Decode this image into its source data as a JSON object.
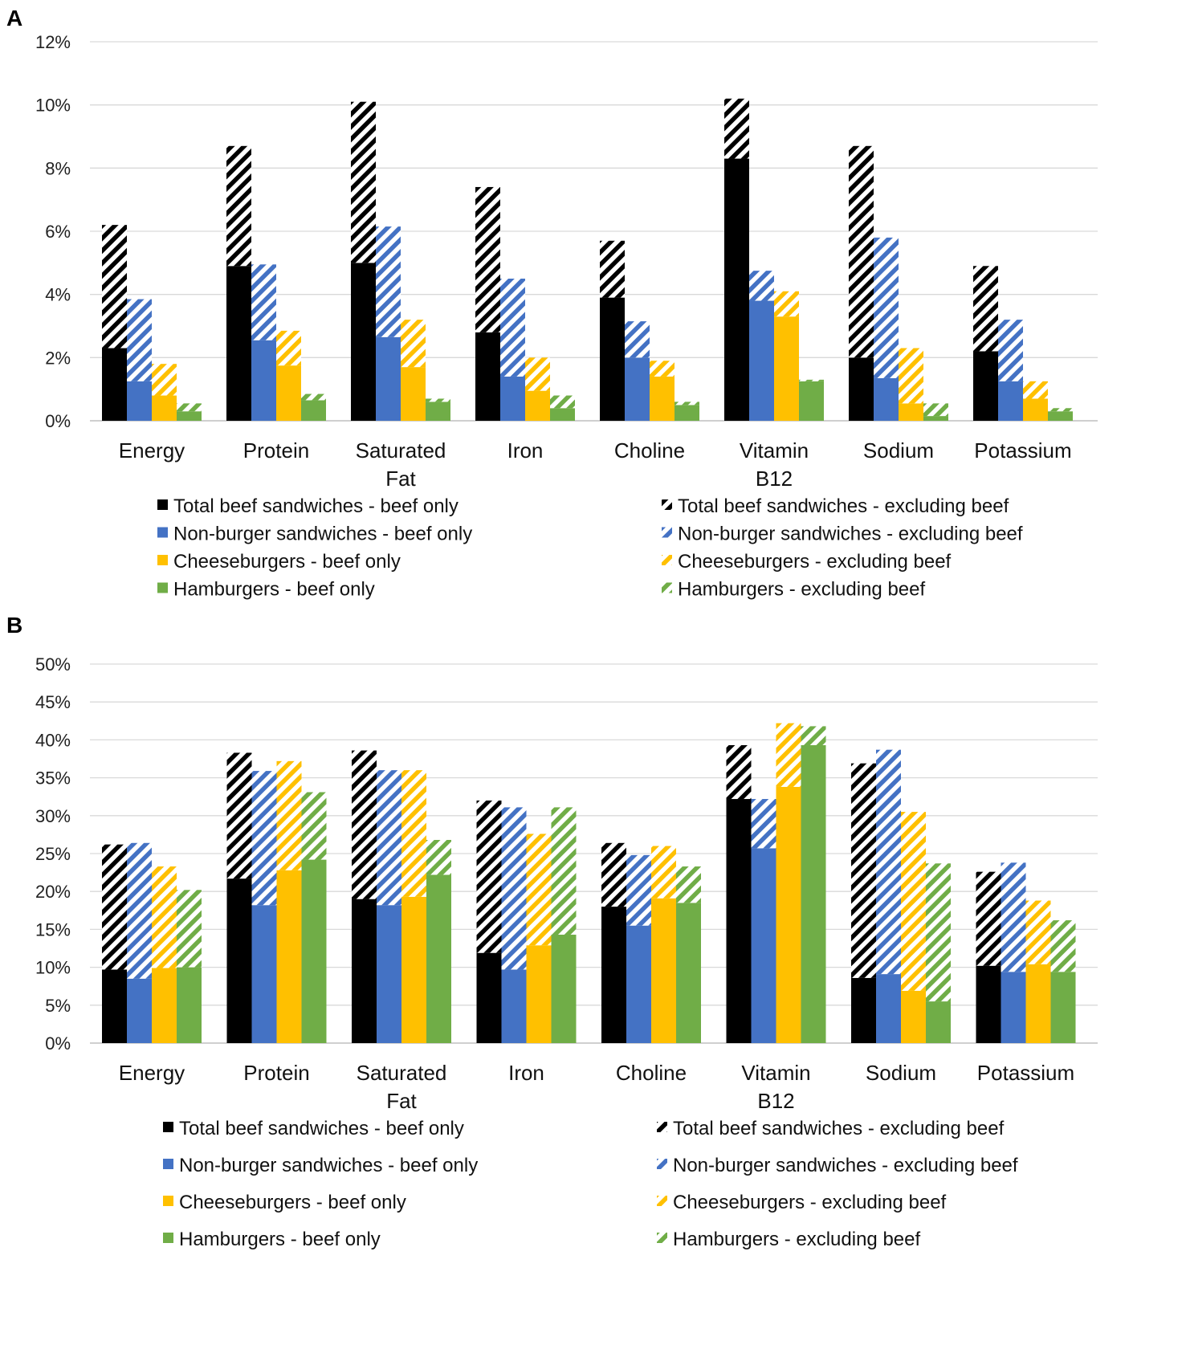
{
  "chart_data": [
    {
      "type": "bar",
      "stacked": true,
      "panel": "A",
      "categories": [
        [
          "Energy"
        ],
        [
          "Protein"
        ],
        [
          "Saturated",
          "Fat"
        ],
        [
          "Iron"
        ],
        [
          "Choline"
        ],
        [
          "Vitamin",
          "B12"
        ],
        [
          "Sodium"
        ],
        [
          "Potassium"
        ]
      ],
      "ylim": [
        0,
        12
      ],
      "yticks": [
        0,
        2,
        4,
        6,
        8,
        10,
        12
      ],
      "tick_suffix": "%",
      "groups": [
        {
          "beef_only_name": "Total beef sandwiches - beef only",
          "excluding_name": "Total beef sandwiches - excluding beef",
          "color": "#000000",
          "beef_only": [
            2.3,
            4.9,
            5.0,
            2.8,
            3.9,
            8.3,
            2.0,
            2.2
          ],
          "excluding_beef": [
            3.9,
            3.8,
            5.1,
            4.6,
            1.8,
            1.9,
            6.7,
            2.7
          ]
        },
        {
          "beef_only_name": "Non-burger sandwiches - beef only",
          "excluding_name": "Non-burger sandwiches - excluding beef",
          "color": "#4472c4",
          "beef_only": [
            1.25,
            2.55,
            2.65,
            1.4,
            2.0,
            3.8,
            1.35,
            1.25
          ],
          "excluding_beef": [
            2.6,
            2.4,
            3.5,
            3.1,
            1.15,
            0.95,
            4.45,
            1.95
          ]
        },
        {
          "beef_only_name": "Cheeseburgers - beef only",
          "excluding_name": "Cheeseburgers - excluding beef",
          "color": "#ffc000",
          "beef_only": [
            0.8,
            1.75,
            1.7,
            0.95,
            1.4,
            3.3,
            0.55,
            0.7
          ],
          "excluding_beef": [
            1.0,
            1.1,
            1.5,
            1.05,
            0.5,
            0.8,
            1.75,
            0.55
          ]
        },
        {
          "beef_only_name": "Hamburgers - beef only",
          "excluding_name": "Hamburgers - excluding beef",
          "color": "#70ad47",
          "beef_only": [
            0.3,
            0.65,
            0.6,
            0.4,
            0.5,
            1.25,
            0.15,
            0.3
          ],
          "excluding_beef": [
            0.25,
            0.2,
            0.1,
            0.4,
            0.1,
            0.05,
            0.4,
            0.1
          ]
        }
      ]
    },
    {
      "type": "bar",
      "stacked": true,
      "panel": "B",
      "categories": [
        [
          "Energy"
        ],
        [
          "Protein"
        ],
        [
          "Saturated",
          "Fat"
        ],
        [
          "Iron"
        ],
        [
          "Choline"
        ],
        [
          "Vitamin",
          "B12"
        ],
        [
          "Sodium"
        ],
        [
          "Potassium"
        ]
      ],
      "ylim": [
        0,
        50
      ],
      "yticks": [
        0,
        5,
        10,
        15,
        20,
        25,
        30,
        35,
        40,
        45,
        50
      ],
      "tick_suffix": "%",
      "groups": [
        {
          "beef_only_name": "Total beef sandwiches - beef only",
          "excluding_name": "Total beef sandwiches - excluding beef",
          "color": "#000000",
          "beef_only": [
            9.7,
            21.7,
            19.0,
            11.9,
            18.0,
            32.2,
            8.6,
            10.2
          ],
          "excluding_beef": [
            16.5,
            16.6,
            19.6,
            20.1,
            8.4,
            7.1,
            28.3,
            12.4
          ]
        },
        {
          "beef_only_name": "Non-burger sandwiches - beef only",
          "excluding_name": "Non-burger sandwiches - excluding beef",
          "color": "#4472c4",
          "beef_only": [
            8.5,
            18.2,
            18.2,
            9.7,
            15.5,
            25.7,
            9.1,
            9.4
          ],
          "excluding_beef": [
            17.9,
            17.7,
            17.8,
            21.4,
            9.3,
            6.5,
            29.6,
            14.4
          ]
        },
        {
          "beef_only_name": "Cheeseburgers - beef only",
          "excluding_name": "Cheeseburgers - excluding beef",
          "color": "#ffc000",
          "beef_only": [
            9.9,
            22.8,
            19.3,
            12.9,
            19.1,
            33.8,
            6.9,
            10.4
          ],
          "excluding_beef": [
            13.4,
            14.4,
            16.7,
            14.7,
            6.9,
            8.4,
            23.6,
            8.4
          ]
        },
        {
          "beef_only_name": "Hamburgers - beef only",
          "excluding_name": "Hamburgers - excluding beef",
          "color": "#70ad47",
          "beef_only": [
            10.0,
            24.2,
            22.2,
            14.3,
            18.5,
            39.3,
            5.5,
            9.4
          ],
          "excluding_beef": [
            10.2,
            8.9,
            4.6,
            16.8,
            4.8,
            2.5,
            18.2,
            6.8
          ]
        }
      ]
    }
  ]
}
